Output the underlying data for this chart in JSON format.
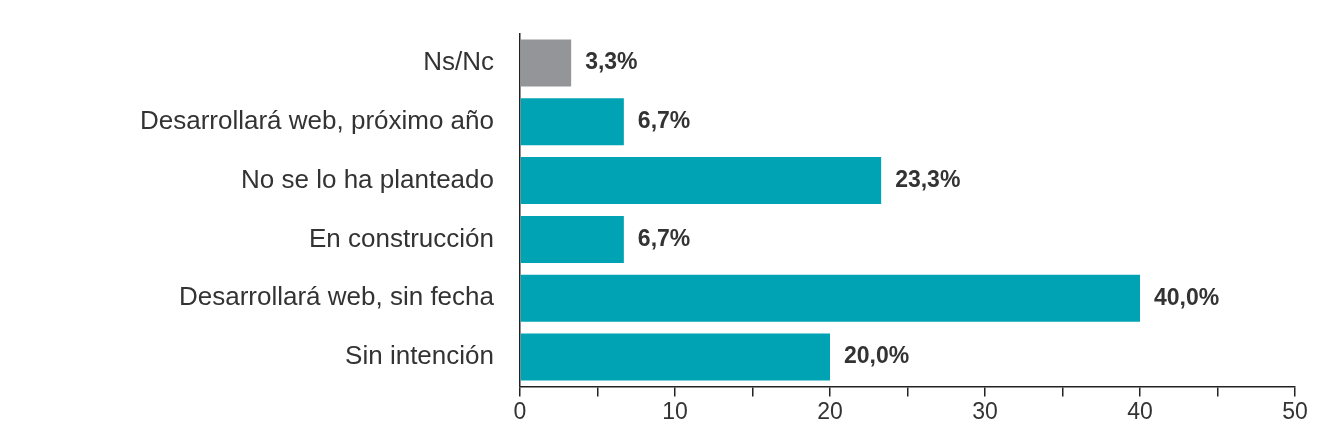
{
  "chart_data": {
    "type": "bar",
    "orientation": "horizontal",
    "categories": [
      "Ns/Nc",
      "Desarrollará web, próximo año",
      "No se lo ha planteado",
      "En construcción",
      "Desarrollará web, sin fecha",
      "Sin intención"
    ],
    "values": [
      3.3,
      6.7,
      23.3,
      6.7,
      40.0,
      20.0
    ],
    "colors": [
      "#939598",
      "#00a3b4",
      "#00a3b4",
      "#00a3b4",
      "#00a3b4",
      "#00a3b4"
    ],
    "value_labels": [
      "3,3%",
      "6,7%",
      "23,3%",
      "6,7%",
      "40,0%",
      "20,0%"
    ],
    "xlim": [
      0,
      50
    ],
    "xticks": [
      0,
      {
        "value": 5,
        "label": null
      },
      10,
      {
        "value": 15,
        "label": null
      },
      20,
      {
        "value": 25,
        "label": null
      },
      30,
      {
        "value": 35,
        "label": null
      },
      40,
      {
        "value": 45,
        "label": null
      },
      50
    ],
    "grid": false,
    "legend": false
  }
}
